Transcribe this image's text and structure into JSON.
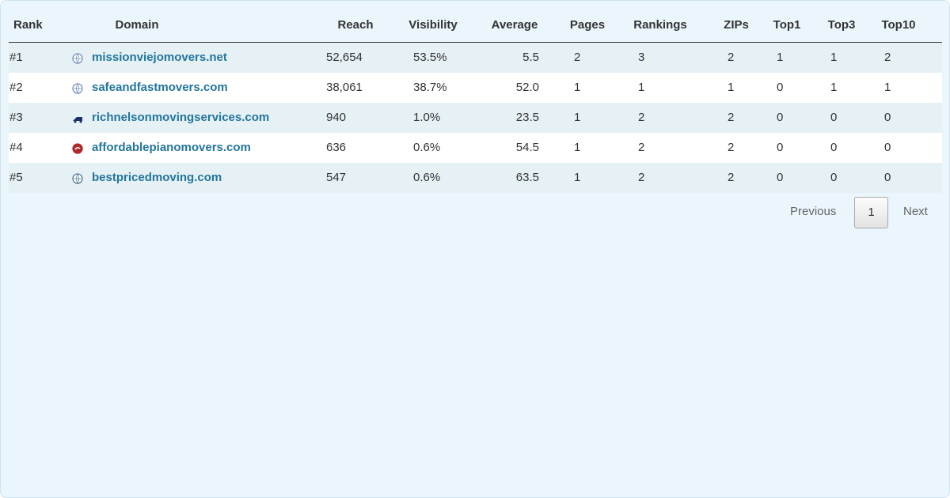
{
  "table": {
    "headers": [
      "Rank",
      "Domain",
      "Reach",
      "Visibility",
      "Average",
      "Pages",
      "Rankings",
      "ZIPs",
      "Top1",
      "Top3",
      "Top10"
    ],
    "rows": [
      [
        "#1",
        "missionviejomovers.net",
        "52,654",
        "53.5%",
        "5.5",
        "2",
        "3",
        "2",
        "1",
        "1",
        "2"
      ],
      [
        "#2",
        "safeandfastmovers.com",
        "38,061",
        "38.7%",
        "52.0",
        "1",
        "1",
        "1",
        "0",
        "1",
        "1"
      ],
      [
        "#3",
        "richnelsonmovingservices.com",
        "940",
        "1.0%",
        "23.5",
        "1",
        "2",
        "2",
        "0",
        "0",
        "0"
      ],
      [
        "#4",
        "affordablepianomovers.com",
        "636",
        "0.6%",
        "54.5",
        "1",
        "2",
        "2",
        "0",
        "0",
        "0"
      ],
      [
        "#5",
        "bestpricedmoving.com",
        "547",
        "0.6%",
        "63.5",
        "1",
        "2",
        "2",
        "0",
        "0",
        "0"
      ]
    ]
  },
  "pagination": {
    "previous": "Previous",
    "current": "1",
    "next": "Next"
  }
}
